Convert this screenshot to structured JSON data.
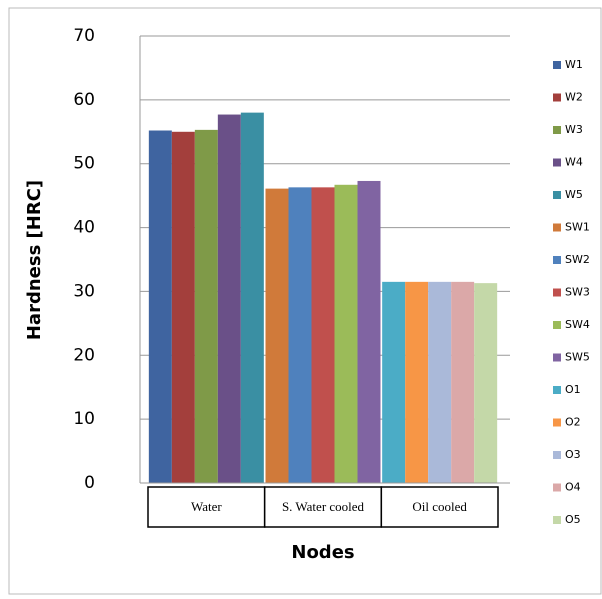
{
  "chart_data": {
    "type": "bar",
    "x_label": "Nodes",
    "y_label": "Hardness [HRC]",
    "categories": [
      "Water",
      "S. Water cooled",
      "Oil cooled"
    ],
    "ylim": [
      0,
      70
    ],
    "yticks": [
      0,
      10,
      20,
      30,
      40,
      50,
      60,
      70
    ],
    "grid": true,
    "legend": "right",
    "series": [
      {
        "name": "W1",
        "color": "#3f64a0",
        "values": [
          55.2,
          null,
          null
        ]
      },
      {
        "name": "W2",
        "color": "#a33f3c",
        "values": [
          55.0,
          null,
          null
        ]
      },
      {
        "name": "W3",
        "color": "#7f9a48",
        "values": [
          55.3,
          null,
          null
        ]
      },
      {
        "name": "W4",
        "color": "#6a5088",
        "values": [
          57.7,
          null,
          null
        ]
      },
      {
        "name": "W5",
        "color": "#3a8fa3",
        "values": [
          58.0,
          null,
          null
        ]
      },
      {
        "name": "SW1",
        "color": "#d07a3a",
        "values": [
          null,
          46.1,
          null
        ]
      },
      {
        "name": "SW2",
        "color": "#4f81bd",
        "values": [
          null,
          46.3,
          null
        ]
      },
      {
        "name": "SW3",
        "color": "#c0504d",
        "values": [
          null,
          46.3,
          null
        ]
      },
      {
        "name": "SW4",
        "color": "#9bbb59",
        "values": [
          null,
          46.7,
          null
        ]
      },
      {
        "name": "SW5",
        "color": "#8064a2",
        "values": [
          null,
          47.3,
          null
        ]
      },
      {
        "name": "O1",
        "color": "#4bacc6",
        "values": [
          null,
          null,
          31.5
        ]
      },
      {
        "name": "O2",
        "color": "#f79646",
        "values": [
          null,
          null,
          31.5
        ]
      },
      {
        "name": "O3",
        "color": "#aab9d9",
        "values": [
          null,
          null,
          31.5
        ]
      },
      {
        "name": "O4",
        "color": "#dba8a8",
        "values": [
          null,
          null,
          31.5
        ]
      },
      {
        "name": "O5",
        "color": "#c4d8a8",
        "values": [
          null,
          null,
          31.3
        ]
      }
    ]
  }
}
